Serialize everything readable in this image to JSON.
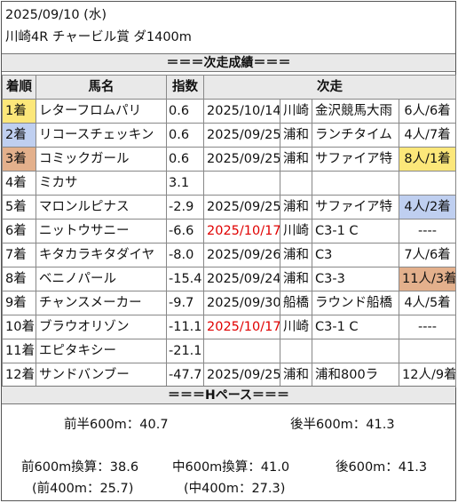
{
  "header": {
    "date": "2025/09/10 (水)",
    "race": "川崎4R チャービル賞 ダ1400m"
  },
  "results_section": {
    "title": "＝＝＝次走成績＝＝＝"
  },
  "table": {
    "columns": {
      "rank": "着順",
      "horse": "馬名",
      "index": "指数",
      "next_race": "次走"
    },
    "rows": [
      {
        "rank": "1着",
        "horse": "レターフロムパリ",
        "index": "0.6",
        "date": "2025/10/14",
        "venue": "川崎",
        "race": "金沢競馬大雨",
        "result": "6人/6着",
        "rank_color": "#fce77a"
      },
      {
        "rank": "2着",
        "horse": "リコースチェッキン",
        "index": "0.6",
        "date": "2025/09/25",
        "venue": "浦和",
        "race": "ランチタイム",
        "result": "4人/7着",
        "rank_color": "#bfcff0"
      },
      {
        "rank": "3着",
        "horse": "コミックガール",
        "index": "0.6",
        "date": "2025/09/25",
        "venue": "浦和",
        "race": "サファイア特",
        "result": "8人/1着",
        "rank_color": "#e3b08c",
        "result_color": "#fce77a"
      },
      {
        "rank": "4着",
        "horse": "ミカサ",
        "index": "3.1",
        "date": "",
        "venue": "",
        "race": "",
        "result": ""
      },
      {
        "rank": "5着",
        "horse": "マロンルピナス",
        "index": "-2.9",
        "date": "2025/09/25",
        "venue": "浦和",
        "race": "サファイア特",
        "result": "4人/2着",
        "result_color": "#bfcff0"
      },
      {
        "rank": "6着",
        "horse": "ニットウサニー",
        "index": "-6.6",
        "date": "2025/10/17",
        "venue": "川崎",
        "race": "C3-1 C",
        "result": "----",
        "date_color": "#e00000"
      },
      {
        "rank": "7着",
        "horse": "キタカラキタダイヤ",
        "index": "-8.0",
        "date": "2025/09/26",
        "venue": "浦和",
        "race": "C3",
        "result": "7人/6着"
      },
      {
        "rank": "8着",
        "horse": "ベニノパール",
        "index": "-15.4",
        "date": "2025/09/24",
        "venue": "浦和",
        "race": "C3-3",
        "result": "11人/3着",
        "result_color": "#e3b08c"
      },
      {
        "rank": "9着",
        "horse": "チャンスメーカー",
        "index": "-9.7",
        "date": "2025/09/30",
        "venue": "船橋",
        "race": "ラウンド船橋",
        "result": "4人/5着"
      },
      {
        "rank": "10着",
        "horse": "ブラウオリゾン",
        "index": "-11.1",
        "date": "2025/10/17",
        "venue": "川崎",
        "race": "C3-1 C",
        "result": "----",
        "date_color": "#e00000"
      },
      {
        "rank": "11着",
        "horse": "エピタキシー",
        "index": "-21.1",
        "date": "",
        "venue": "",
        "race": "",
        "result": ""
      },
      {
        "rank": "12着",
        "horse": "サンドバンブー",
        "index": "-47.7",
        "date": "2025/09/25",
        "venue": "浦和",
        "race": "浦和800ラ",
        "result": "12人/9着"
      }
    ]
  },
  "pace_section": {
    "title": "＝＝＝Hペース＝＝＝"
  },
  "pace": {
    "first_half": "前半600m：40.7",
    "second_half": "後半600m：41.3",
    "front600": "前600m換算：38.6",
    "mid600": "中600m換算：41.0",
    "last600": "後600m：41.3",
    "front400": "(前400m：25.7)",
    "mid400": "(中400m：27.3)"
  }
}
